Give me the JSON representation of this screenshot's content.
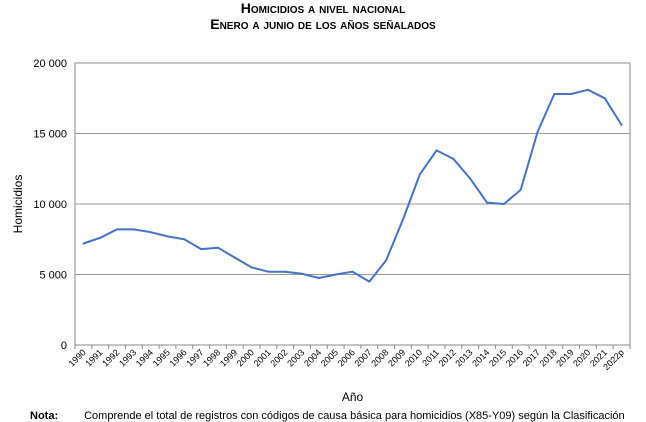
{
  "chart_data": {
    "type": "line",
    "title": "Homicidios a nivel nacional",
    "subtitle": "Enero a junio de los años señalados",
    "xlabel": "Año",
    "ylabel": "Homicidios",
    "ylim": [
      0,
      20000
    ],
    "yticks": [
      "0",
      "5 000",
      "10 000",
      "15 000",
      "20 000"
    ],
    "grid": true,
    "color": "#4472C4",
    "categories": [
      "1990",
      "1991",
      "1992",
      "1993",
      "1994",
      "1995",
      "1996",
      "1997",
      "1998",
      "1999",
      "2000",
      "2001",
      "2002",
      "2003",
      "2004",
      "2005",
      "2006",
      "2007",
      "2008",
      "2009",
      "2010",
      "2011",
      "2012",
      "2013",
      "2014",
      "2015",
      "2016",
      "2017",
      "2018",
      "2019",
      "2020",
      "2021",
      "2022p"
    ],
    "values": [
      7200,
      7600,
      8200,
      8200,
      8000,
      7700,
      7500,
      6800,
      6900,
      6200,
      5500,
      5200,
      5200,
      5050,
      4750,
      5000,
      5200,
      4500,
      6000,
      8900,
      12100,
      13800,
      13200,
      11800,
      10100,
      10000,
      11000,
      15100,
      17800,
      17800,
      18100,
      17500,
      15600
    ]
  },
  "footer": {
    "note_label": "Nota:",
    "note_text": "Comprende el total de registros con códigos de causa básica para homicidios (X85-Y09) según la Clasificación"
  }
}
